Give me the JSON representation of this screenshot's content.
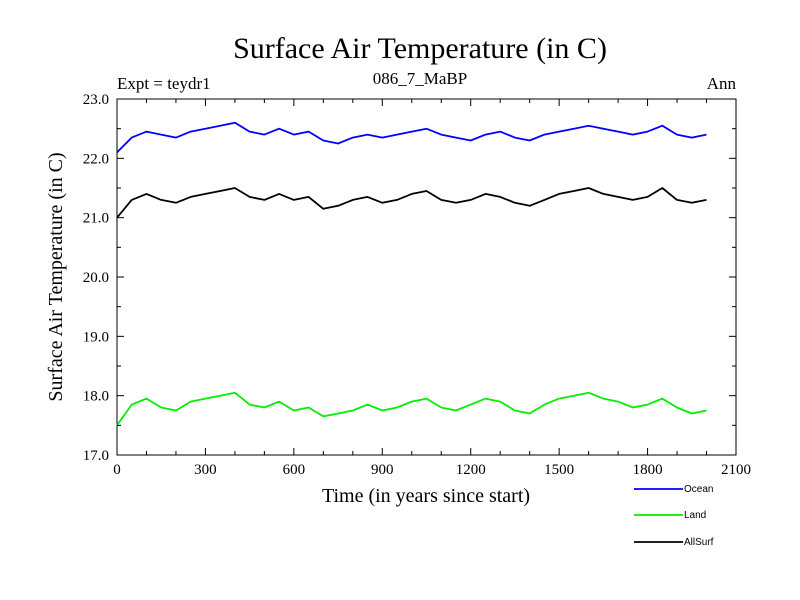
{
  "chart_data": {
    "type": "line",
    "title": "Surface Air Temperature (in C)",
    "subtitle_left": "Expt = teydr1",
    "subtitle_center": "086_7_MaBP",
    "subtitle_right": "Ann",
    "xlabel": "Time (in years since start)",
    "ylabel": "Surface Air Temperature (in C)",
    "xlim": [
      0,
      2100
    ],
    "ylim": [
      17.0,
      23.0
    ],
    "xticks": [
      0,
      300,
      600,
      900,
      1200,
      1500,
      1800,
      2100
    ],
    "yticks": [
      "17.0",
      "18.0",
      "19.0",
      "20.0",
      "21.0",
      "22.0",
      "23.0"
    ],
    "grid": false,
    "legend_position": "bottom-right",
    "series": [
      {
        "name": "Ocean",
        "color": "#0000ff",
        "x": [
          0,
          50,
          100,
          150,
          200,
          250,
          300,
          350,
          400,
          450,
          500,
          550,
          600,
          650,
          700,
          750,
          800,
          850,
          900,
          950,
          1000,
          1050,
          1100,
          1150,
          1200,
          1250,
          1300,
          1350,
          1400,
          1450,
          1500,
          1550,
          1600,
          1650,
          1700,
          1750,
          1800,
          1850,
          1900,
          1950,
          2000
        ],
        "values": [
          22.1,
          22.35,
          22.45,
          22.4,
          22.35,
          22.45,
          22.5,
          22.55,
          22.6,
          22.45,
          22.4,
          22.5,
          22.4,
          22.45,
          22.3,
          22.25,
          22.35,
          22.4,
          22.35,
          22.4,
          22.45,
          22.5,
          22.4,
          22.35,
          22.3,
          22.4,
          22.45,
          22.35,
          22.3,
          22.4,
          22.45,
          22.5,
          22.55,
          22.5,
          22.45,
          22.4,
          22.45,
          22.55,
          22.4,
          22.35,
          22.4
        ]
      },
      {
        "name": "Land",
        "color": "#00ee00",
        "x": [
          0,
          50,
          100,
          150,
          200,
          250,
          300,
          350,
          400,
          450,
          500,
          550,
          600,
          650,
          700,
          750,
          800,
          850,
          900,
          950,
          1000,
          1050,
          1100,
          1150,
          1200,
          1250,
          1300,
          1350,
          1400,
          1450,
          1500,
          1550,
          1600,
          1650,
          1700,
          1750,
          1800,
          1850,
          1900,
          1950,
          2000
        ],
        "values": [
          17.5,
          17.85,
          17.95,
          17.8,
          17.75,
          17.9,
          17.95,
          18.0,
          18.05,
          17.85,
          17.8,
          17.9,
          17.75,
          17.8,
          17.65,
          17.7,
          17.75,
          17.85,
          17.75,
          17.8,
          17.9,
          17.95,
          17.8,
          17.75,
          17.85,
          17.95,
          17.9,
          17.75,
          17.7,
          17.85,
          17.95,
          18.0,
          18.05,
          17.95,
          17.9,
          17.8,
          17.85,
          17.95,
          17.8,
          17.7,
          17.75
        ]
      },
      {
        "name": "AllSurf",
        "color": "#000000",
        "x": [
          0,
          50,
          100,
          150,
          200,
          250,
          300,
          350,
          400,
          450,
          500,
          550,
          600,
          650,
          700,
          750,
          800,
          850,
          900,
          950,
          1000,
          1050,
          1100,
          1150,
          1200,
          1250,
          1300,
          1350,
          1400,
          1450,
          1500,
          1550,
          1600,
          1650,
          1700,
          1750,
          1800,
          1850,
          1900,
          1950,
          2000
        ],
        "values": [
          21.0,
          21.3,
          21.4,
          21.3,
          21.25,
          21.35,
          21.4,
          21.45,
          21.5,
          21.35,
          21.3,
          21.4,
          21.3,
          21.35,
          21.15,
          21.2,
          21.3,
          21.35,
          21.25,
          21.3,
          21.4,
          21.45,
          21.3,
          21.25,
          21.3,
          21.4,
          21.35,
          21.25,
          21.2,
          21.3,
          21.4,
          21.45,
          21.5,
          21.4,
          21.35,
          21.3,
          21.35,
          21.5,
          21.3,
          21.25,
          21.3
        ]
      }
    ]
  }
}
